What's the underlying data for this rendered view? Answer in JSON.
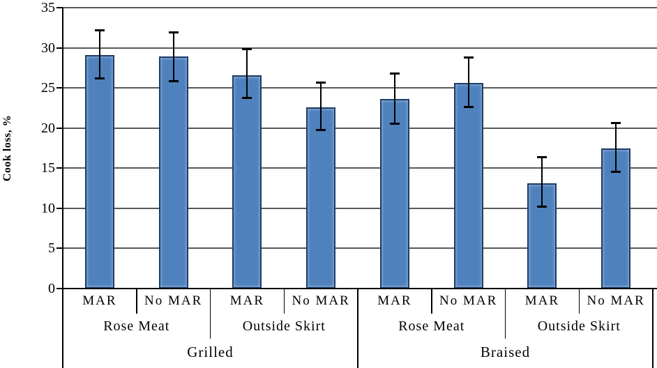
{
  "chart_data": {
    "type": "bar",
    "title": "",
    "ylabel": "Cook loss, %",
    "xlabel": "",
    "ylim": [
      0,
      35
    ],
    "yticks": [
      0,
      5,
      10,
      15,
      20,
      25,
      30,
      35
    ],
    "grid": true,
    "legend": false,
    "categories": [
      "Grilled / Rose Meat / MAR",
      "Grilled / Rose Meat / No MAR",
      "Grilled / Outside Skirt / MAR",
      "Grilled / Outside Skirt / No MAR",
      "Braised / Rose Meat / MAR",
      "Braised / Rose Meat / No MAR",
      "Braised / Outside Skirt / MAR",
      "Braised / Outside Skirt / No MAR"
    ],
    "series": [
      {
        "name": "Cook loss, %",
        "values": [
          29.1,
          28.9,
          26.6,
          22.6,
          23.6,
          25.6,
          13.1,
          17.5
        ],
        "error_upper": [
          32.2,
          32.0,
          29.9,
          25.7,
          26.8,
          28.8,
          16.4,
          20.7
        ],
        "error_lower": [
          26.1,
          25.8,
          23.7,
          19.7,
          20.5,
          22.6,
          10.2,
          14.5
        ]
      }
    ],
    "axis_group_rows": {
      "treatment": [
        "MAR",
        "No MAR",
        "MAR",
        "No MAR",
        "MAR",
        "No MAR",
        "MAR",
        "No MAR"
      ],
      "cut": [
        "Rose Meat",
        "Outside Skirt",
        "Rose Meat",
        "Outside Skirt"
      ],
      "cooking_method": [
        "Grilled",
        "Braised"
      ]
    }
  },
  "colors": {
    "bar_fill": "#4F81BD",
    "bar_border": "#1E3C64",
    "gridline": "#595959",
    "axis": "#000000",
    "error_bar": "#000000",
    "background": "#FFFFFF"
  }
}
